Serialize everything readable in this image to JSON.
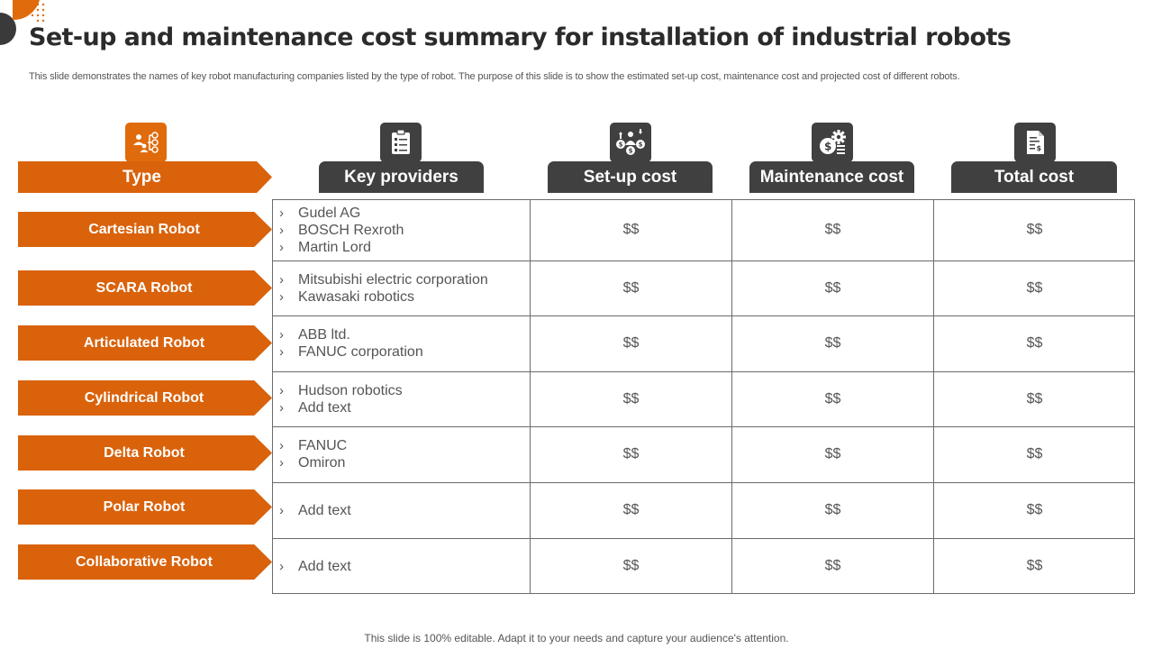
{
  "slide": {
    "title": "Set-up and maintenance cost summary for installation of industrial robots",
    "subtitle": "This slide demonstrates the names of key robot manufacturing companies listed by the type  of robot. The purpose of this slide is to show the estimated set-up cost, maintenance cost and projected cost of different robots.",
    "footer": "This slide is 100% editable. Adapt it to your needs and capture your audience's attention."
  },
  "colors": {
    "accent": "#d9620b",
    "dark": "#404040",
    "grid": "#6b6b6b"
  },
  "headers": {
    "type": "Type",
    "providers": "Key providers",
    "setup": "Set-up cost",
    "maintenance": "Maintenance cost",
    "total": "Total cost"
  },
  "header_icons": {
    "type": "org-chart-icon",
    "providers": "clipboard-icon",
    "setup": "money-transfer-icon",
    "maintenance": "cost-gear-icon",
    "total": "invoice-document-icon"
  },
  "rows": [
    {
      "type": "Cartesian Robot",
      "providers": [
        "Gudel AG",
        "BOSCH Rexroth",
        "Martin Lord"
      ],
      "setup": "$$",
      "maintenance": "$$",
      "total": "$$"
    },
    {
      "type": "SCARA Robot",
      "providers": [
        "Mitsubishi electric corporation",
        "Kawasaki robotics"
      ],
      "setup": "$$",
      "maintenance": "$$",
      "total": "$$"
    },
    {
      "type": "Articulated Robot",
      "providers": [
        "ABB ltd.",
        "FANUC corporation"
      ],
      "setup": "$$",
      "maintenance": "$$",
      "total": "$$"
    },
    {
      "type": "Cylindrical Robot",
      "providers": [
        "Hudson robotics",
        "Add text"
      ],
      "setup": "$$",
      "maintenance": "$$",
      "total": "$$"
    },
    {
      "type": "Delta Robot",
      "providers": [
        "FANUC",
        "Omiron"
      ],
      "setup": "$$",
      "maintenance": "$$",
      "total": "$$"
    },
    {
      "type": "Polar Robot",
      "providers": [
        "Add text"
      ],
      "setup": "$$",
      "maintenance": "$$",
      "total": "$$"
    },
    {
      "type": "Collaborative Robot",
      "providers": [
        "Add text"
      ],
      "setup": "$$",
      "maintenance": "$$",
      "total": "$$"
    }
  ]
}
